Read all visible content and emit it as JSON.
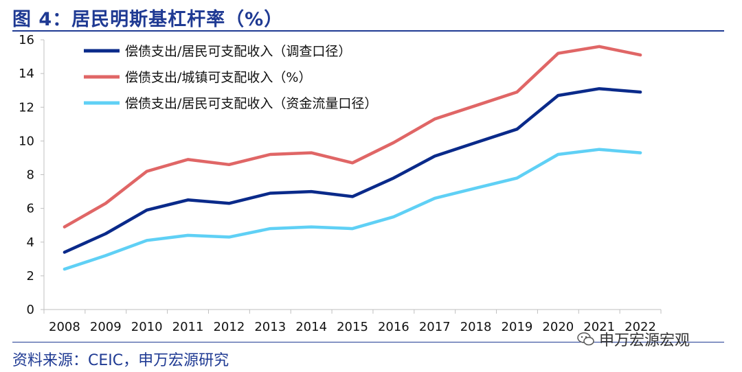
{
  "header": {
    "title": "图 4：居民明斯基杠杆率（%）"
  },
  "footer": {
    "source": "资料来源：CEIC，申万宏源研究",
    "watermark": "申万宏源宏观",
    "watermark_icon": "wechat-icon"
  },
  "colors": {
    "title": "#1f3a93",
    "axis": "#bfbfbf"
  },
  "chart_data": {
    "type": "line",
    "title": "",
    "xlabel": "",
    "ylabel": "",
    "ylim": [
      0,
      16
    ],
    "yticks": [
      "0",
      "2",
      "4",
      "6",
      "8",
      "10",
      "12",
      "14",
      "16"
    ],
    "categories": [
      "2008",
      "2009",
      "2010",
      "2011",
      "2012",
      "2013",
      "2014",
      "2015",
      "2016",
      "2017",
      "2018",
      "2019",
      "2020",
      "2021",
      "2022"
    ],
    "legend_position": "top-left",
    "grid": false,
    "series": [
      {
        "name": "偿债支出/居民可支配收入（调查口径）",
        "color": "#0a2a8a",
        "values": [
          3.4,
          4.5,
          5.9,
          6.5,
          6.3,
          6.9,
          7.0,
          6.7,
          7.8,
          9.1,
          9.9,
          10.7,
          12.7,
          13.1,
          12.9
        ]
      },
      {
        "name": "偿债支出/城镇可支配收入（%）",
        "color": "#e06666",
        "values": [
          4.9,
          6.3,
          8.2,
          8.9,
          8.6,
          9.2,
          9.3,
          8.7,
          9.9,
          11.3,
          12.1,
          12.9,
          15.2,
          15.6,
          15.1
        ]
      },
      {
        "name": "偿债支出/居民可支配收入（资金流量口径）",
        "color": "#5fd0f5",
        "values": [
          2.4,
          3.2,
          4.1,
          4.4,
          4.3,
          4.8,
          4.9,
          4.8,
          5.5,
          6.6,
          7.2,
          7.8,
          9.2,
          9.5,
          9.3
        ]
      }
    ]
  }
}
